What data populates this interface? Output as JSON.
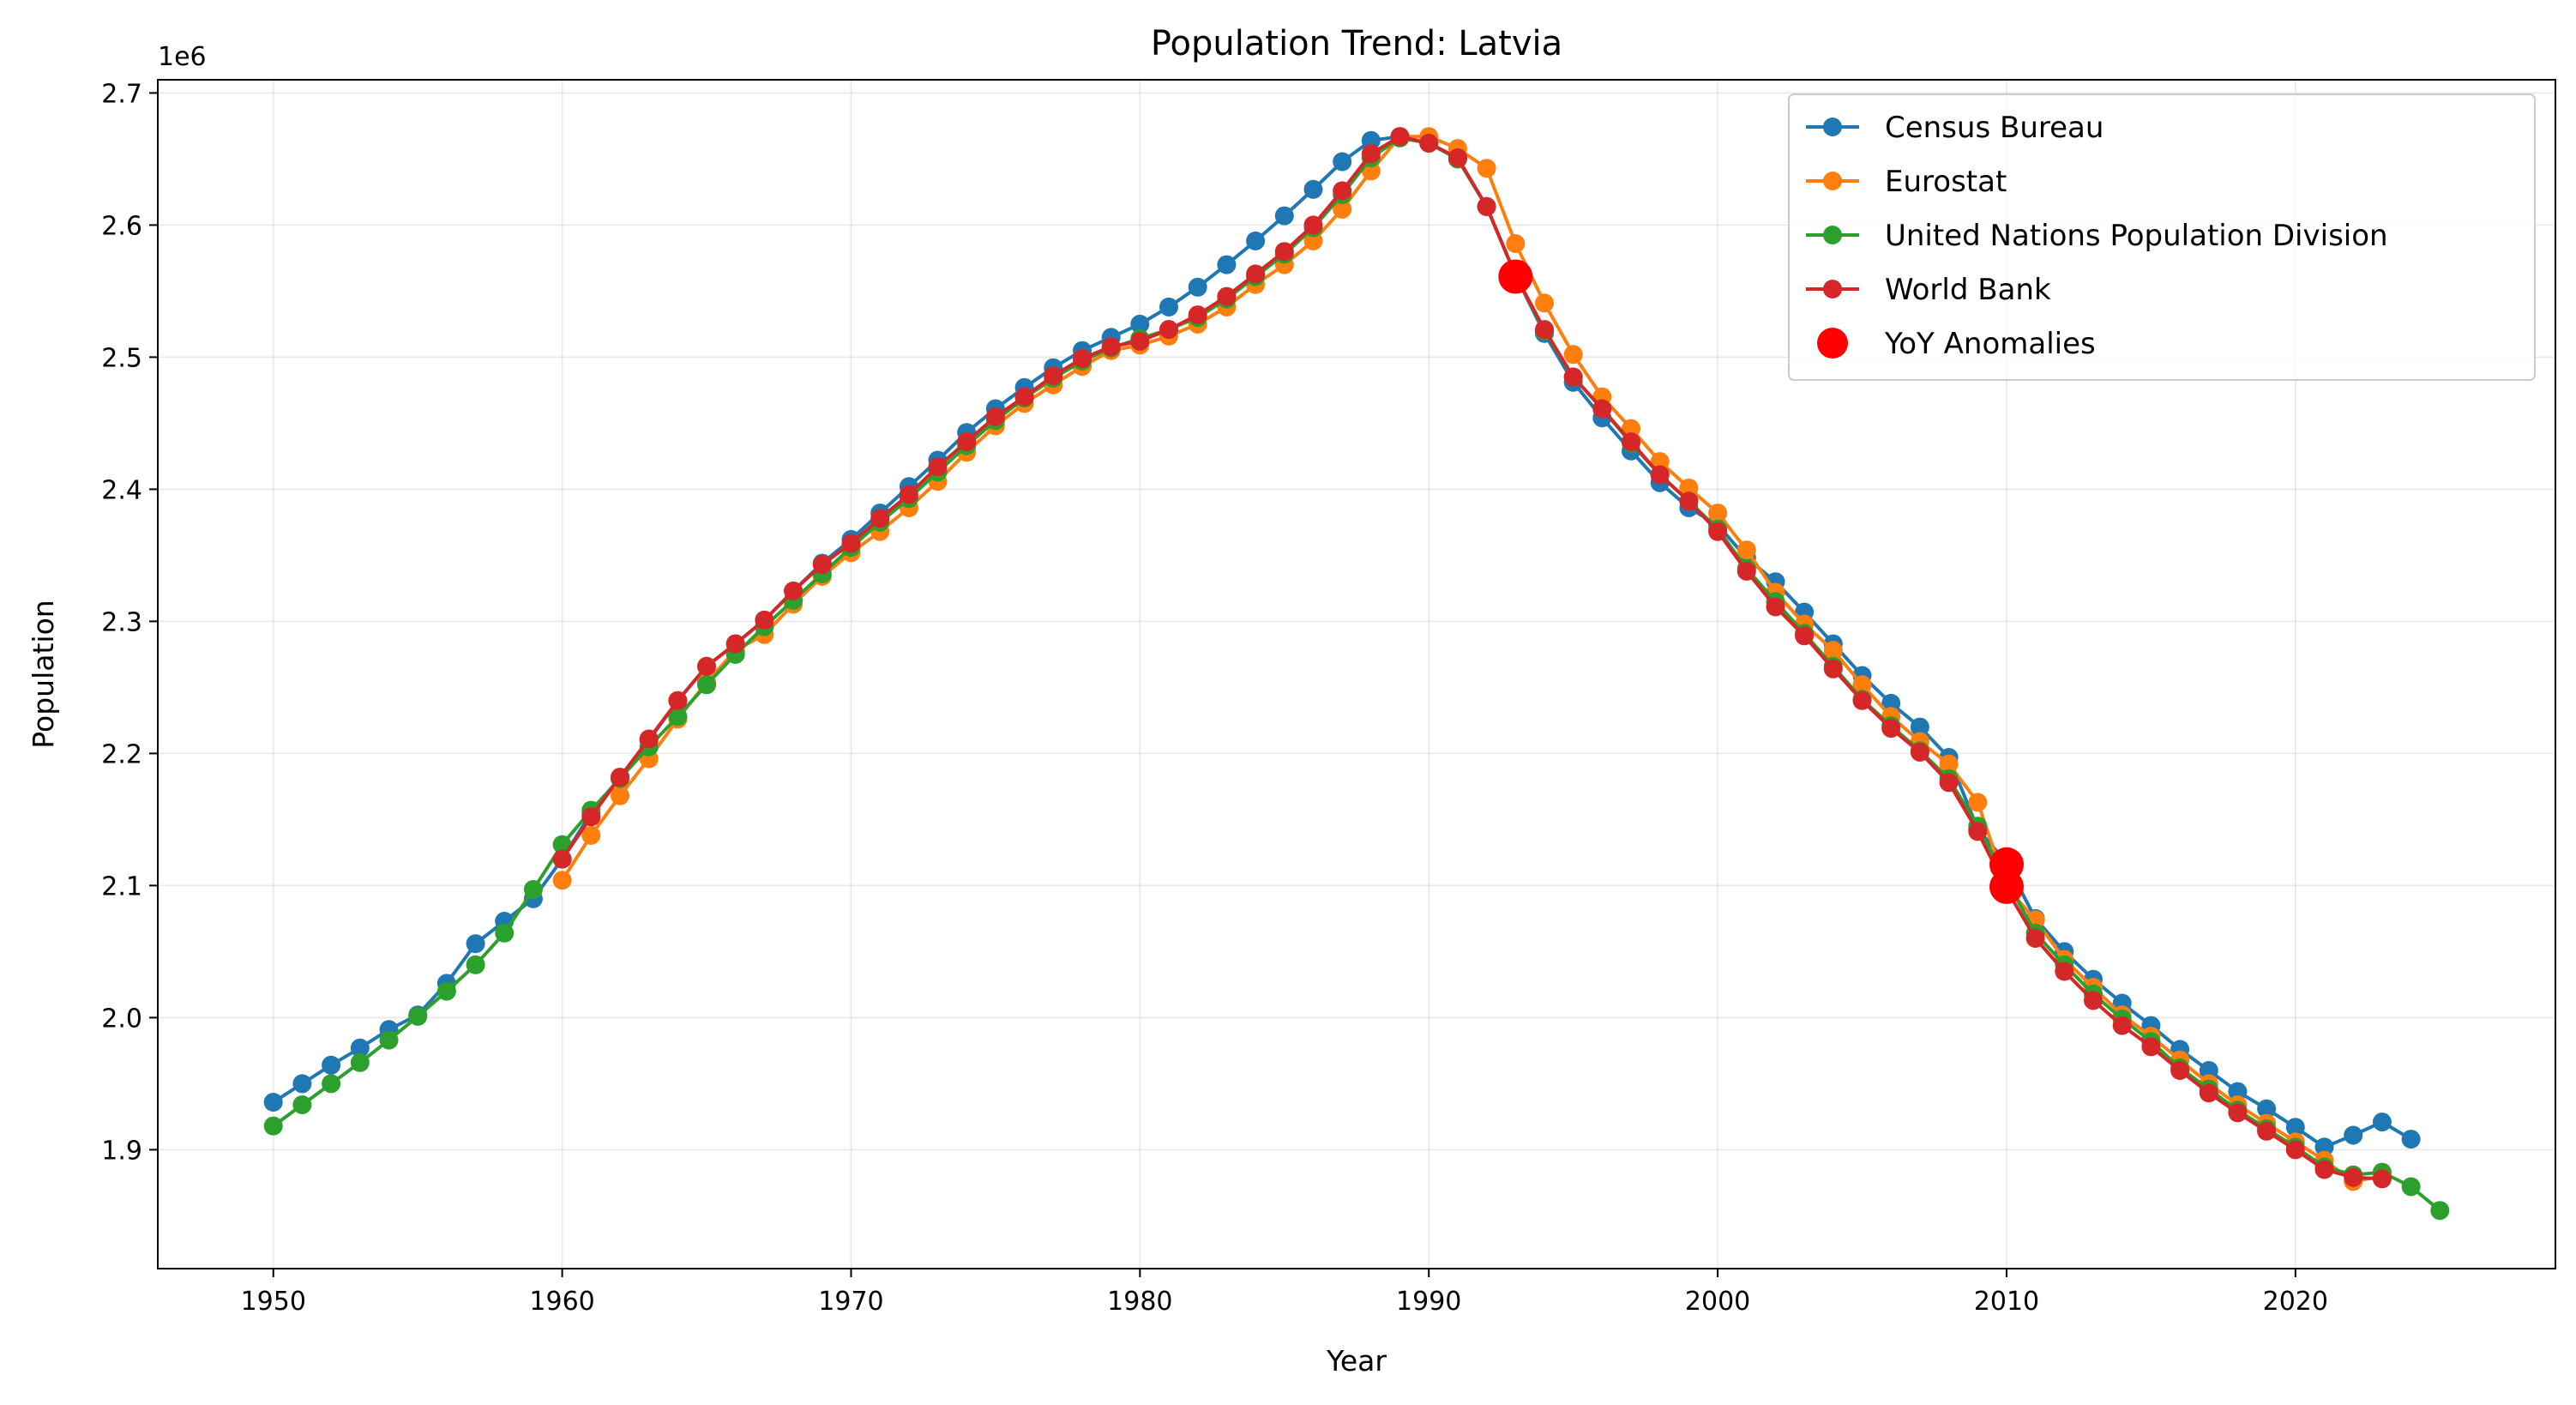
{
  "chart_data": {
    "type": "line",
    "title": "Population Trend: Latvia",
    "xlabel": "Year",
    "ylabel": "Population",
    "y_offset_label": "1e6",
    "xlim": [
      1946,
      2029
    ],
    "ylim": [
      1.81,
      2.71
    ],
    "x_ticks": [
      1950,
      1960,
      1970,
      1980,
      1990,
      2000,
      2010,
      2020
    ],
    "y_ticks": [
      1.9,
      2.0,
      2.1,
      2.2,
      2.3,
      2.4,
      2.5,
      2.6,
      2.7
    ],
    "y_tick_labels": [
      "1.9",
      "2.0",
      "2.1",
      "2.2",
      "2.3",
      "2.4",
      "2.5",
      "2.6",
      "2.7"
    ],
    "grid": true,
    "legend_position": "top-right",
    "series": [
      {
        "name": "Census Bureau",
        "color": "#1f77b4",
        "x": [
          1950,
          1951,
          1952,
          1953,
          1954,
          1955,
          1956,
          1957,
          1958,
          1959,
          1960,
          1961,
          1962,
          1963,
          1964,
          1965,
          1966,
          1967,
          1968,
          1969,
          1970,
          1971,
          1972,
          1973,
          1974,
          1975,
          1976,
          1977,
          1978,
          1979,
          1980,
          1981,
          1982,
          1983,
          1984,
          1985,
          1986,
          1987,
          1988,
          1989,
          1990,
          1991,
          1992,
          1993,
          1994,
          1995,
          1996,
          1997,
          1998,
          1999,
          2000,
          2001,
          2002,
          2003,
          2004,
          2005,
          2006,
          2007,
          2008,
          2009,
          2010,
          2011,
          2012,
          2013,
          2014,
          2015,
          2016,
          2017,
          2018,
          2019,
          2020,
          2021,
          2022,
          2023,
          2024
        ],
        "y": [
          1.936,
          1.95,
          1.964,
          1.977,
          1.991,
          2.002,
          2.026,
          2.056,
          2.073,
          2.09,
          2.12,
          2.155,
          2.182,
          2.21,
          2.24,
          2.266,
          2.283,
          2.301,
          2.323,
          2.344,
          2.362,
          2.382,
          2.402,
          2.422,
          2.443,
          2.461,
          2.477,
          2.492,
          2.505,
          2.515,
          2.525,
          2.538,
          2.553,
          2.57,
          2.588,
          2.607,
          2.627,
          2.648,
          2.664,
          2.667,
          2.662,
          2.65,
          2.614,
          2.562,
          2.518,
          2.481,
          2.454,
          2.429,
          2.405,
          2.386,
          2.373,
          2.348,
          2.33,
          2.307,
          2.283,
          2.259,
          2.238,
          2.22,
          2.197,
          2.143,
          2.117,
          2.075,
          2.05,
          2.029,
          2.011,
          1.994,
          1.976,
          1.96,
          1.944,
          1.931,
          1.917,
          1.902,
          1.911,
          1.921,
          1.908
        ]
      },
      {
        "name": "Eurostat",
        "color": "#ff7f0e",
        "x": [
          1960,
          1961,
          1962,
          1963,
          1964,
          1965,
          1966,
          1967,
          1968,
          1969,
          1970,
          1971,
          1972,
          1973,
          1974,
          1975,
          1976,
          1977,
          1978,
          1979,
          1980,
          1981,
          1982,
          1983,
          1984,
          1985,
          1986,
          1987,
          1988,
          1989,
          1990,
          1991,
          1992,
          1993,
          1994,
          1995,
          1996,
          1997,
          1998,
          1999,
          2000,
          2001,
          2002,
          2003,
          2004,
          2005,
          2006,
          2007,
          2008,
          2009,
          2010,
          2011,
          2012,
          2013,
          2014,
          2015,
          2016,
          2017,
          2018,
          2019,
          2020,
          2021,
          2022,
          2023
        ],
        "y": [
          2.104,
          2.138,
          2.168,
          2.196,
          2.226,
          2.254,
          2.278,
          2.29,
          2.313,
          2.334,
          2.352,
          2.368,
          2.386,
          2.406,
          2.428,
          2.448,
          2.465,
          2.479,
          2.493,
          2.505,
          2.509,
          2.516,
          2.525,
          2.538,
          2.555,
          2.57,
          2.588,
          2.612,
          2.641,
          2.667,
          2.667,
          2.658,
          2.643,
          2.586,
          2.541,
          2.502,
          2.47,
          2.446,
          2.421,
          2.401,
          2.382,
          2.354,
          2.322,
          2.298,
          2.278,
          2.252,
          2.228,
          2.209,
          2.192,
          2.163,
          2.099,
          2.074,
          2.044,
          2.023,
          2.002,
          1.986,
          1.968,
          1.95,
          1.934,
          1.92,
          1.906,
          1.892,
          1.876,
          1.88
        ]
      },
      {
        "name": "United Nations Population Division",
        "color": "#2ca02c",
        "x": [
          1950,
          1951,
          1952,
          1953,
          1954,
          1955,
          1956,
          1957,
          1958,
          1959,
          1960,
          1961,
          1962,
          1963,
          1964,
          1965,
          1966,
          1967,
          1968,
          1969,
          1970,
          1971,
          1972,
          1973,
          1974,
          1975,
          1976,
          1977,
          1978,
          1979,
          1980,
          1981,
          1982,
          1983,
          1984,
          1985,
          1986,
          1987,
          1988,
          1989,
          1990,
          1991,
          1992,
          1993,
          1994,
          1995,
          1996,
          1997,
          1998,
          1999,
          2000,
          2001,
          2002,
          2003,
          2004,
          2005,
          2006,
          2007,
          2008,
          2009,
          2010,
          2011,
          2012,
          2013,
          2014,
          2015,
          2016,
          2017,
          2018,
          2019,
          2020,
          2021,
          2022,
          2023,
          2024,
          2025
        ],
        "y": [
          1.918,
          1.934,
          1.95,
          1.966,
          1.983,
          2.001,
          2.02,
          2.04,
          2.064,
          2.097,
          2.131,
          2.157,
          2.181,
          2.205,
          2.228,
          2.252,
          2.275,
          2.296,
          2.316,
          2.336,
          2.356,
          2.375,
          2.393,
          2.413,
          2.433,
          2.452,
          2.469,
          2.484,
          2.497,
          2.507,
          2.514,
          2.521,
          2.53,
          2.544,
          2.561,
          2.578,
          2.598,
          2.623,
          2.651,
          2.666,
          2.662,
          2.65,
          2.614,
          2.562,
          2.52,
          2.485,
          2.461,
          2.435,
          2.411,
          2.391,
          2.37,
          2.34,
          2.315,
          2.291,
          2.266,
          2.241,
          2.221,
          2.202,
          2.181,
          2.145,
          2.104,
          2.064,
          2.04,
          2.018,
          1.999,
          1.982,
          1.962,
          1.946,
          1.93,
          1.916,
          1.902,
          1.887,
          1.881,
          1.883,
          1.872,
          1.854
        ]
      },
      {
        "name": "World Bank",
        "color": "#d62728",
        "x": [
          1960,
          1961,
          1962,
          1963,
          1964,
          1965,
          1966,
          1967,
          1968,
          1969,
          1970,
          1971,
          1972,
          1973,
          1974,
          1975,
          1976,
          1977,
          1978,
          1979,
          1980,
          1981,
          1982,
          1983,
          1984,
          1985,
          1986,
          1987,
          1988,
          1989,
          1990,
          1991,
          1992,
          1993,
          1994,
          1995,
          1996,
          1997,
          1998,
          1999,
          2000,
          2001,
          2002,
          2003,
          2004,
          2005,
          2006,
          2007,
          2008,
          2009,
          2010,
          2011,
          2012,
          2013,
          2014,
          2015,
          2016,
          2017,
          2018,
          2019,
          2020,
          2021,
          2022,
          2023
        ],
        "y": [
          2.12,
          2.152,
          2.182,
          2.211,
          2.24,
          2.266,
          2.283,
          2.301,
          2.323,
          2.343,
          2.359,
          2.378,
          2.396,
          2.417,
          2.436,
          2.455,
          2.47,
          2.486,
          2.499,
          2.508,
          2.512,
          2.521,
          2.532,
          2.546,
          2.563,
          2.58,
          2.6,
          2.626,
          2.654,
          2.667,
          2.662,
          2.651,
          2.614,
          2.562,
          2.521,
          2.485,
          2.461,
          2.436,
          2.411,
          2.391,
          2.368,
          2.338,
          2.311,
          2.289,
          2.264,
          2.24,
          2.219,
          2.201,
          2.178,
          2.141,
          2.097,
          2.06,
          2.035,
          2.013,
          1.994,
          1.978,
          1.96,
          1.943,
          1.928,
          1.914,
          1.9,
          1.885,
          1.879,
          1.878
        ]
      }
    ],
    "anomalies": {
      "name": "YoY Anomalies",
      "color": "#ff0000",
      "x": [
        1993,
        2010,
        2010
      ],
      "y": [
        2.561,
        2.116,
        2.099
      ]
    }
  }
}
